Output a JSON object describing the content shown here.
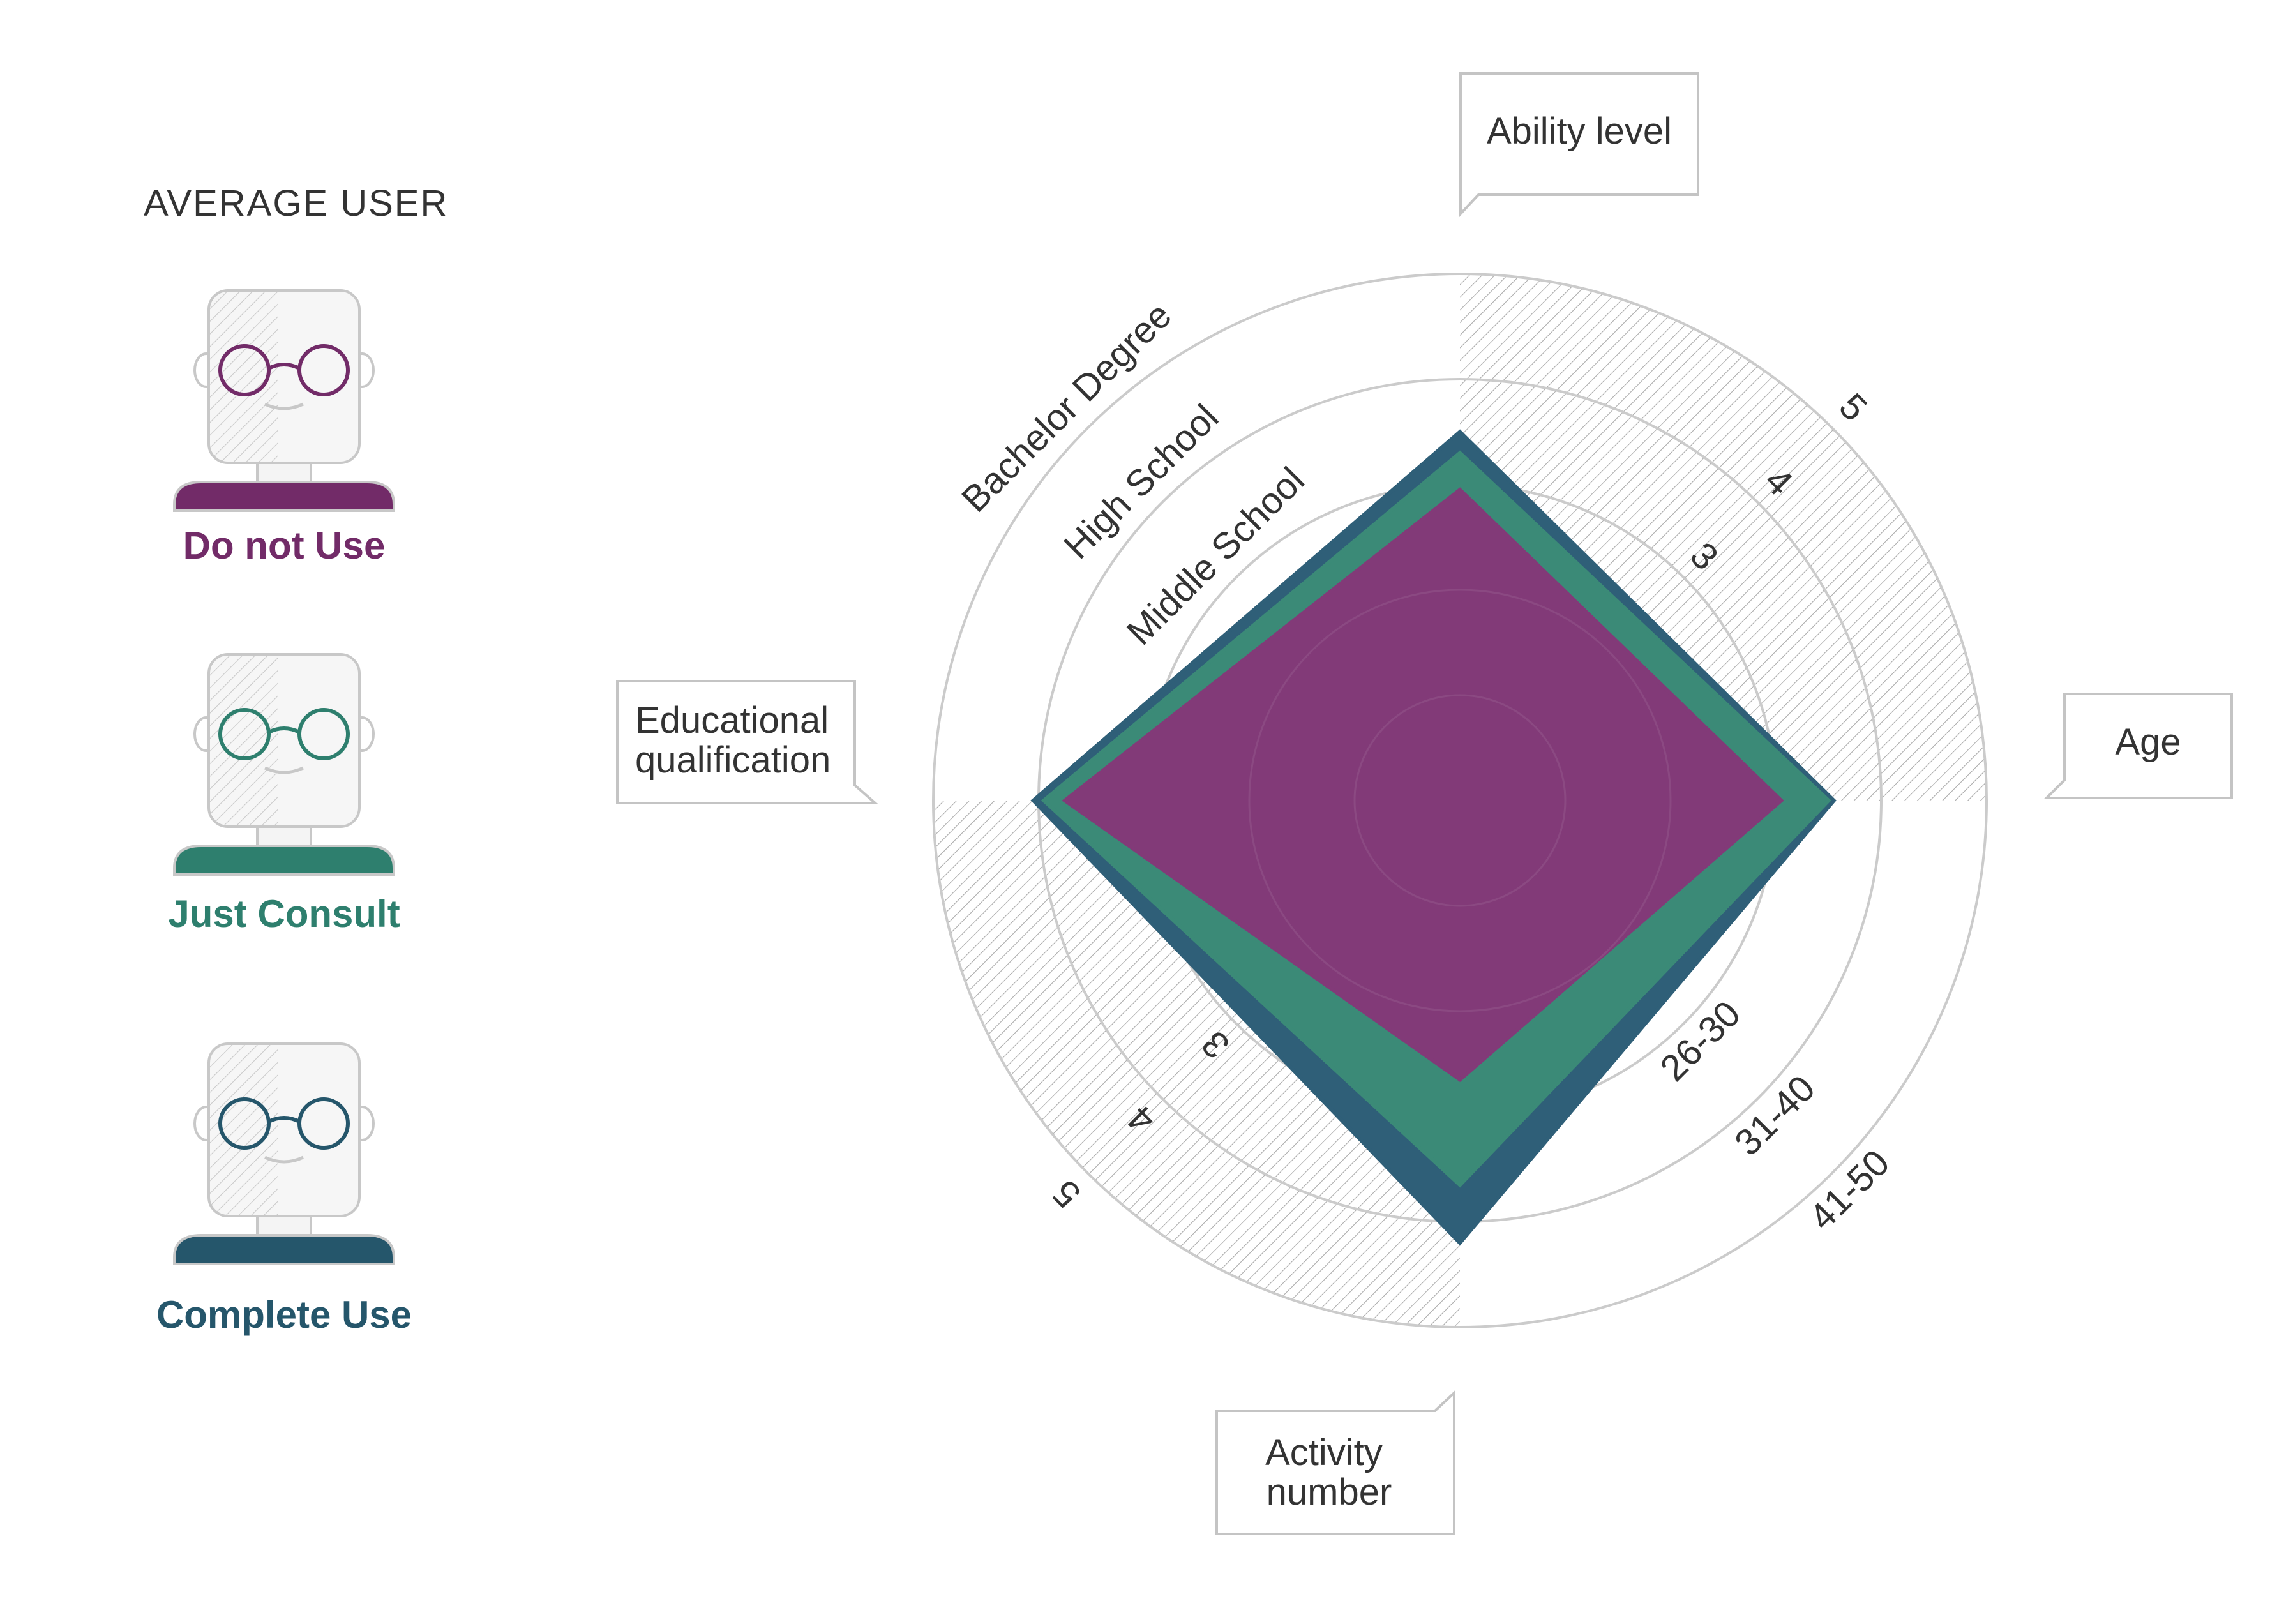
{
  "legend": {
    "heading": "AVERAGE USER",
    "items": [
      {
        "label": "Do not Use",
        "color": "#722b68",
        "icon": "person-with-glasses-icon"
      },
      {
        "label": "Just Consult",
        "color": "#2e7f6e",
        "icon": "person-with-glasses-icon"
      },
      {
        "label": "Complete Use",
        "color": "#25566b",
        "icon": "person-with-glasses-icon"
      }
    ]
  },
  "chart_data": {
    "type": "radar",
    "axes": [
      {
        "label": "Ability level",
        "direction": "up",
        "tick_labels": [
          "3",
          "4",
          "5"
        ]
      },
      {
        "label": "Age",
        "direction": "right",
        "tick_labels": [
          "26-30",
          "31-40",
          "41-50"
        ]
      },
      {
        "label": "Activity number",
        "direction": "down",
        "tick_labels": [
          "3",
          "4",
          "5"
        ]
      },
      {
        "label": "Educational qualification",
        "direction": "left",
        "tick_labels": [
          "Middle School",
          "High School",
          "Bachelor Degree"
        ]
      }
    ],
    "rings": 5,
    "series": [
      {
        "name": "Complete Use",
        "color": "#2f5f78",
        "values": {
          "Ability level": 3.5,
          "Age": 3.55,
          "Activity number": 4.2,
          "Educational qualification": 4.05
        }
      },
      {
        "name": "Just Consult",
        "color": "#3b8a77",
        "values": {
          "Ability level": 3.3,
          "Age": 3.5,
          "Activity number": 3.65,
          "Educational qualification": 3.95
        }
      },
      {
        "name": "Do not Use",
        "color": "#823a78",
        "values": {
          "Ability level": 2.95,
          "Age": 3.05,
          "Activity number": 2.65,
          "Educational qualification": 3.75
        }
      }
    ]
  }
}
